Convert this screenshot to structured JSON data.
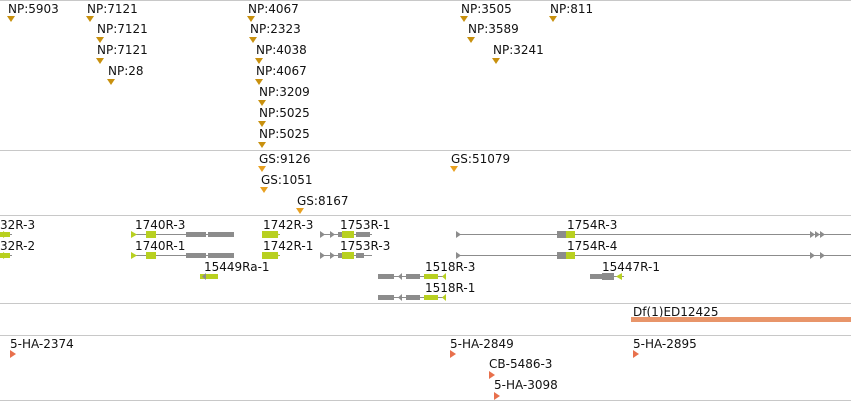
{
  "tracks": {
    "np": {
      "features": [
        {
          "label": "NP:5903"
        },
        {
          "label": "NP:7121"
        },
        {
          "label": "NP:7121"
        },
        {
          "label": "NP:7121"
        },
        {
          "label": "NP:28"
        },
        {
          "label": "NP:4067"
        },
        {
          "label": "NP:2323"
        },
        {
          "label": "NP:4038"
        },
        {
          "label": "NP:4067"
        },
        {
          "label": "NP:3209"
        },
        {
          "label": "NP:5025"
        },
        {
          "label": "NP:5025"
        },
        {
          "label": "NP:3505"
        },
        {
          "label": "NP:3589"
        },
        {
          "label": "NP:3241"
        },
        {
          "label": "NP:811"
        }
      ]
    },
    "gs": {
      "features": [
        {
          "label": "GS:9126"
        },
        {
          "label": "GS:1051"
        },
        {
          "label": "GS:8167"
        },
        {
          "label": "GS:51079"
        }
      ]
    },
    "genes": {
      "labels": [
        "32R-3",
        "32R-2",
        "1740R-3",
        "1740R-1",
        "15449Ra-1",
        "1742R-3",
        "1742R-1",
        "1753R-1",
        "1753R-3",
        "1518R-3",
        "1518R-1",
        "1754R-3",
        "1754R-4",
        "15447R-1"
      ]
    },
    "deficiency": {
      "label": "Df(1)ED12425",
      "color": "#e8956a"
    },
    "insertions": {
      "features": [
        {
          "label": "5-HA-2374"
        },
        {
          "label": "5-HA-2849"
        },
        {
          "label": "CB-5486-3"
        },
        {
          "label": "5-HA-3098"
        },
        {
          "label": "5-HA-2895"
        }
      ]
    }
  },
  "colors": {
    "np_marker": "#c8900e",
    "gs_marker": "#e8a020",
    "exon_coding": "#b8d020",
    "exon_noncoding": "#8c8c8c",
    "insertion_marker": "#e8704c"
  }
}
